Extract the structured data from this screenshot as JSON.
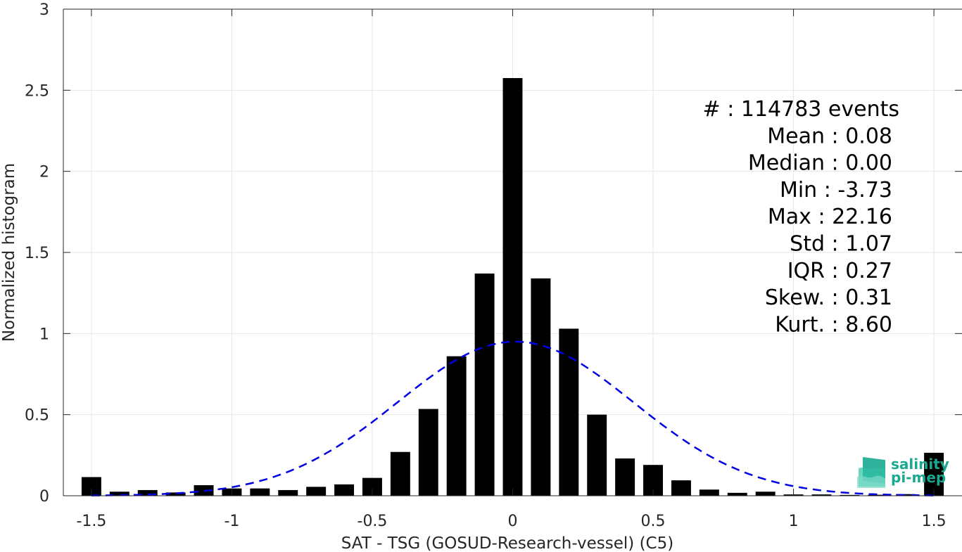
{
  "chart_data": {
    "type": "bar",
    "title": "",
    "xlabel": "SAT - TSG (GOSUD-Research-vessel) (C5)",
    "ylabel": "Normalized histogram",
    "xlim": [
      -1.6,
      1.6
    ],
    "ylim": [
      0,
      3
    ],
    "x_ticks": [
      -1.5,
      -1,
      -0.5,
      0,
      0.5,
      1,
      1.5
    ],
    "x_tick_labels": [
      "-1.5",
      "-1",
      "-0.5",
      "0",
      "0.5",
      "1",
      "1.5"
    ],
    "y_ticks": [
      0,
      0.5,
      1,
      1.5,
      2,
      2.5,
      3
    ],
    "y_tick_labels": [
      "0",
      "0.5",
      "1",
      "1.5",
      "2",
      "2.5",
      "3"
    ],
    "grid": true,
    "bar_color": "#000000",
    "bin_width": 0.1,
    "bins": [
      -1.5,
      -1.4,
      -1.3,
      -1.2,
      -1.1,
      -1.0,
      -0.9,
      -0.8,
      -0.7,
      -0.6,
      -0.5,
      -0.4,
      -0.3,
      -0.2,
      -0.1,
      0.0,
      0.1,
      0.2,
      0.3,
      0.4,
      0.5,
      0.6,
      0.7,
      0.8,
      0.9,
      1.0,
      1.1,
      1.2,
      1.3,
      1.4,
      1.5
    ],
    "values": [
      0.115,
      0.025,
      0.035,
      0.02,
      0.065,
      0.045,
      0.045,
      0.035,
      0.055,
      0.07,
      0.11,
      0.27,
      0.535,
      0.86,
      1.37,
      2.575,
      1.34,
      1.03,
      0.5,
      0.23,
      0.19,
      0.095,
      0.038,
      0.018,
      0.025,
      0.008,
      0.008,
      0.005,
      0.006,
      0.01,
      0.265
    ],
    "fit": {
      "type": "gaussian",
      "mean": 0.01,
      "std": 0.42,
      "color": "#0000e6",
      "style": "dashed"
    },
    "stats": [
      {
        "label": "#  :",
        "value": "114783 events"
      },
      {
        "label": "Mean :",
        "value": "0.08"
      },
      {
        "label": "Median :",
        "value": "0.00"
      },
      {
        "label": "Min :",
        "value": "-3.73"
      },
      {
        "label": "Max :",
        "value": "22.16"
      },
      {
        "label": "Std :",
        "value": "1.07"
      },
      {
        "label": "IQR :",
        "value": "0.27"
      },
      {
        "label": "Skew. :",
        "value": "0.31"
      },
      {
        "label": "Kurt. :",
        "value": "8.60"
      }
    ]
  },
  "logo": {
    "line1": "salinity",
    "line2": "pi-mep",
    "color": "#1aa890"
  }
}
